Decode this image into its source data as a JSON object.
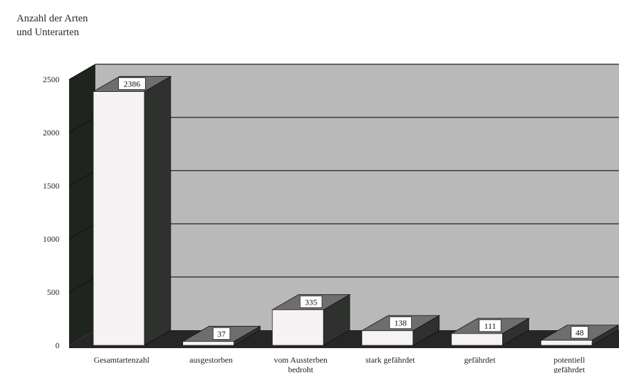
{
  "chart_data": {
    "type": "bar",
    "ylabel_lines": [
      "Anzahl der Arten",
      "und Unterarten"
    ],
    "ylim": [
      0,
      2500
    ],
    "yticks": [
      0,
      500,
      1000,
      1500,
      2000,
      2500
    ],
    "categories": [
      "Gesamtartenzahl",
      "ausgestorben",
      "vom Aussterben bedroht",
      "stark gefährdet",
      "gefährdet",
      "potentiell gefährdet"
    ],
    "values": [
      2386,
      37,
      335,
      138,
      111,
      48
    ],
    "grid": true,
    "style": "3d",
    "colors": {
      "bar_front": "#f7f3f5",
      "bar_top": "#6e6e6e",
      "bar_side": "#2e312e",
      "back_wall": "#b9b9b9",
      "left_wall": "#1f241f",
      "floor": "#262626",
      "grid": "#3a3a3a"
    }
  }
}
